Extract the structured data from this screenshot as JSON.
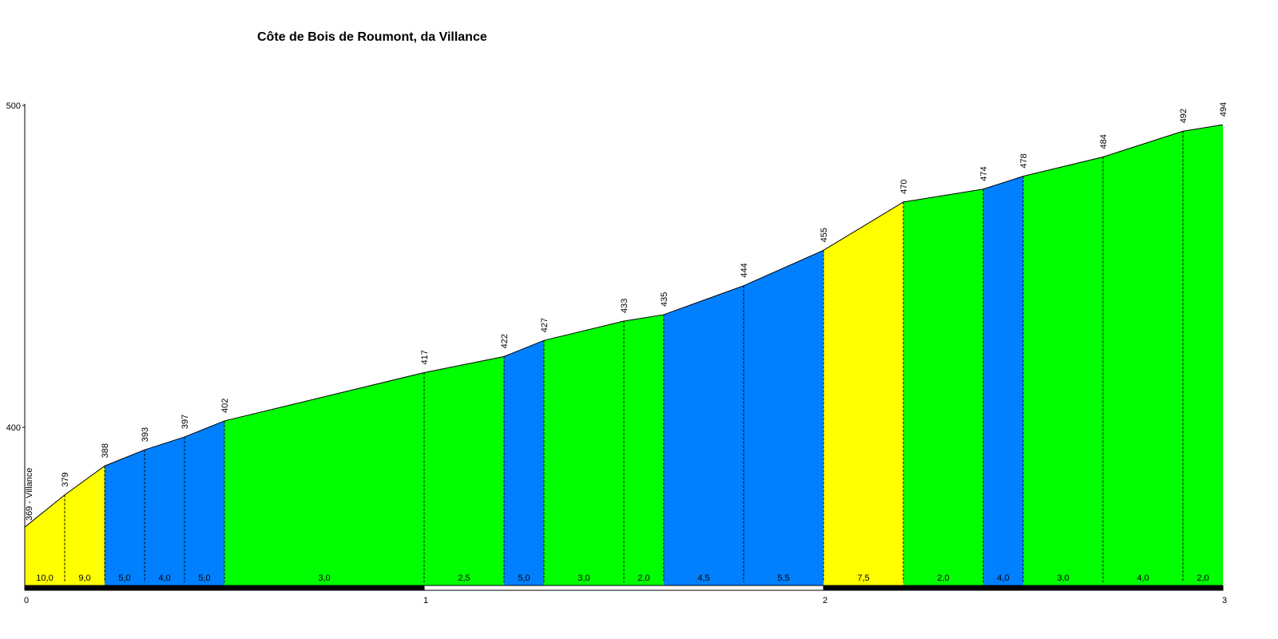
{
  "chart_data": {
    "type": "area",
    "title": "Côte de Bois de Roumont, da Villance",
    "xlabel": "",
    "ylabel": "",
    "xlim": [
      0,
      3
    ],
    "ylim": [
      350,
      500
    ],
    "y_ticks": [
      "400",
      "500"
    ],
    "x_ticks": [
      "0",
      "1",
      "2",
      "3"
    ],
    "start_label": "369 - Villance",
    "points": [
      {
        "x": 0.0,
        "y": 369
      },
      {
        "x": 0.1,
        "y": 379
      },
      {
        "x": 0.2,
        "y": 388
      },
      {
        "x": 0.3,
        "y": 393
      },
      {
        "x": 0.4,
        "y": 397
      },
      {
        "x": 0.5,
        "y": 402
      },
      {
        "x": 1.0,
        "y": 417
      },
      {
        "x": 1.2,
        "y": 422
      },
      {
        "x": 1.3,
        "y": 427
      },
      {
        "x": 1.5,
        "y": 433
      },
      {
        "x": 1.6,
        "y": 435
      },
      {
        "x": 1.8,
        "y": 444
      },
      {
        "x": 2.0,
        "y": 455
      },
      {
        "x": 2.2,
        "y": 470
      },
      {
        "x": 2.4,
        "y": 474
      },
      {
        "x": 2.5,
        "y": 478
      },
      {
        "x": 2.7,
        "y": 484
      },
      {
        "x": 2.9,
        "y": 492
      },
      {
        "x": 3.0,
        "y": 494
      }
    ],
    "point_labels": [
      "",
      "379",
      "388",
      "393",
      "397",
      "402",
      "417",
      "422",
      "427",
      "433",
      "435",
      "444",
      "455",
      "470",
      "474",
      "478",
      "484",
      "492",
      "494"
    ],
    "segment_gradients": [
      "10,0",
      "9,0",
      "5,0",
      "4,0",
      "5,0",
      "3,0",
      "2,5",
      "5,0",
      "3,0",
      "2,0",
      "4,5",
      "5,5",
      "7,5",
      "2,0",
      "4,0",
      "3,0",
      "4,0",
      "2,0"
    ],
    "segment_colors": [
      "#ffff00",
      "#ffff00",
      "#0080ff",
      "#0080ff",
      "#0080ff",
      "#00ff00",
      "#00ff00",
      "#0080ff",
      "#00ff00",
      "#00ff00",
      "#0080ff",
      "#0080ff",
      "#ffff00",
      "#00ff00",
      "#0080ff",
      "#00ff00",
      "#00ff00",
      "#00ff00"
    ]
  }
}
